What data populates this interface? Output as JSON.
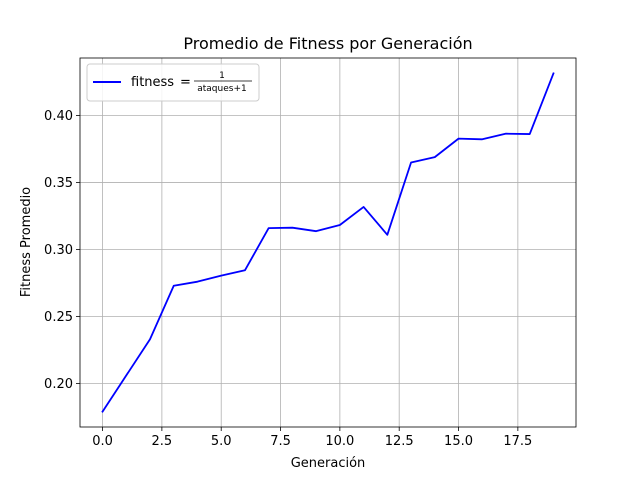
{
  "chart_data": {
    "type": "line",
    "title": "Promedio de Fitness por Generación",
    "xlabel": "Generación",
    "ylabel": "Fitness Promedio",
    "xlim": [
      -0.95,
      19.95
    ],
    "ylim": [
      0.1675,
      0.443
    ],
    "x_ticks": [
      0.0,
      2.5,
      5.0,
      7.5,
      10.0,
      12.5,
      15.0,
      17.5
    ],
    "x_tick_labels": [
      "0.0",
      "2.5",
      "5.0",
      "7.5",
      "10.0",
      "12.5",
      "15.0",
      "17.5"
    ],
    "y_ticks": [
      0.2,
      0.25,
      0.3,
      0.35,
      0.4
    ],
    "y_tick_labels": [
      "0.20",
      "0.25",
      "0.30",
      "0.35",
      "0.40"
    ],
    "grid": true,
    "legend_position": "upper-left",
    "series": [
      {
        "name": "fitness = 1 / (ataques + 1)",
        "legend": {
          "lhs": "fitness",
          "eq": "=",
          "num": "1",
          "den": "ataques+1"
        },
        "color": "#0000ff",
        "x": [
          0,
          1,
          2,
          3,
          4,
          5,
          6,
          7,
          8,
          9,
          10,
          11,
          12,
          13,
          14,
          15,
          16,
          17,
          18,
          19
        ],
        "y": [
          0.179,
          0.206,
          0.233,
          0.273,
          0.276,
          0.2805,
          0.2845,
          0.316,
          0.3163,
          0.3137,
          0.3183,
          0.3318,
          0.311,
          0.365,
          0.369,
          0.3828,
          0.3823,
          0.3865,
          0.3862,
          0.4315
        ]
      }
    ]
  }
}
